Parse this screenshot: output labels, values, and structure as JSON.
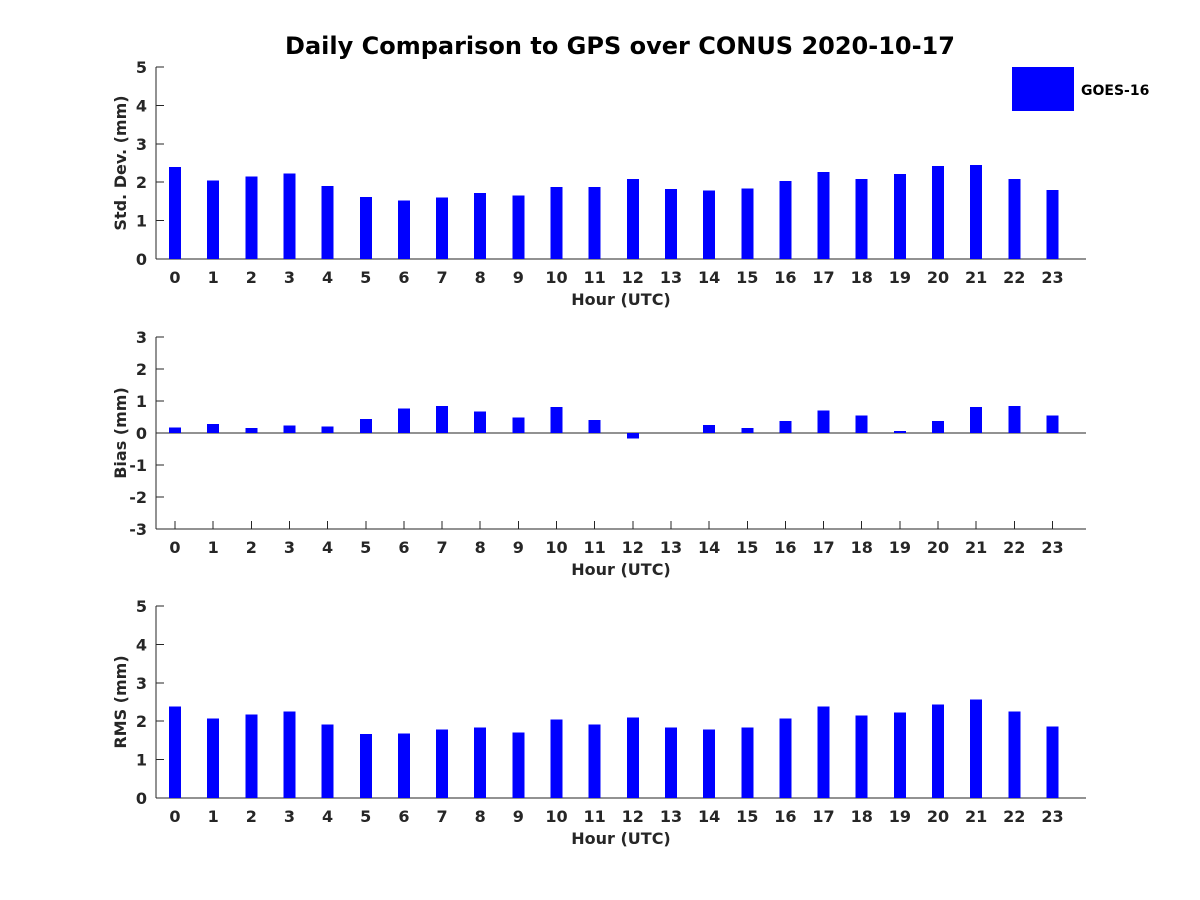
{
  "chart_data": {
    "title": "Daily Comparison to GPS over CONUS 2020-10-17",
    "legend": {
      "entries": [
        "GOES-16"
      ],
      "placement": "top-right",
      "colors": [
        "#0000ff"
      ]
    },
    "bar_color": "#0000ff",
    "subplots": [
      {
        "type": "bar",
        "xlabel": "Hour (UTC)",
        "ylabel": "Std. Dev. (mm)",
        "ylim": [
          0,
          5
        ],
        "yticks": [
          "0",
          "1",
          "2",
          "3",
          "4",
          "5"
        ],
        "categories": [
          "0",
          "1",
          "2",
          "3",
          "4",
          "5",
          "6",
          "7",
          "8",
          "9",
          "10",
          "11",
          "12",
          "13",
          "14",
          "15",
          "16",
          "17",
          "18",
          "19",
          "20",
          "21",
          "22",
          "23"
        ],
        "series": [
          {
            "name": "GOES-16",
            "values": [
              2.4,
              2.05,
              2.15,
              2.23,
              1.9,
              1.62,
              1.52,
              1.6,
              1.72,
              1.65,
              1.88,
              1.87,
              2.08,
              1.82,
              1.78,
              1.83,
              2.03,
              2.27,
              2.08,
              2.21,
              2.42,
              2.45,
              2.08,
              1.8
            ]
          }
        ]
      },
      {
        "type": "bar",
        "xlabel": "Hour (UTC)",
        "ylabel": "Bias (mm)",
        "ylim": [
          -3,
          3
        ],
        "yticks": [
          "-3",
          "-2",
          "-1",
          "0",
          "1",
          "2",
          "3"
        ],
        "categories": [
          "0",
          "1",
          "2",
          "3",
          "4",
          "5",
          "6",
          "7",
          "8",
          "9",
          "10",
          "11",
          "12",
          "13",
          "14",
          "15",
          "16",
          "17",
          "18",
          "19",
          "20",
          "21",
          "22",
          "23"
        ],
        "series": [
          {
            "name": "GOES-16",
            "values": [
              0.17,
              0.28,
              0.16,
              0.23,
              0.2,
              0.43,
              0.76,
              0.85,
              0.67,
              0.48,
              0.82,
              0.41,
              -0.17,
              0.0,
              0.25,
              0.16,
              0.38,
              0.7,
              0.55,
              0.07,
              0.38,
              0.82,
              0.85,
              0.55
            ]
          }
        ]
      },
      {
        "type": "bar",
        "xlabel": "Hour (UTC)",
        "ylabel": "RMS (mm)",
        "ylim": [
          0,
          5
        ],
        "yticks": [
          "0",
          "1",
          "2",
          "3",
          "4",
          "5"
        ],
        "categories": [
          "0",
          "1",
          "2",
          "3",
          "4",
          "5",
          "6",
          "7",
          "8",
          "9",
          "10",
          "11",
          "12",
          "13",
          "14",
          "15",
          "16",
          "17",
          "18",
          "19",
          "20",
          "21",
          "22",
          "23"
        ],
        "series": [
          {
            "name": "GOES-16",
            "values": [
              2.38,
              2.07,
              2.17,
              2.25,
              1.92,
              1.67,
              1.68,
              1.78,
              1.83,
              1.7,
              2.05,
              1.92,
              2.1,
              1.84,
              1.78,
              1.84,
              2.07,
              2.38,
              2.15,
              2.23,
              2.43,
              2.56,
              2.25,
              1.86
            ]
          }
        ]
      }
    ]
  }
}
